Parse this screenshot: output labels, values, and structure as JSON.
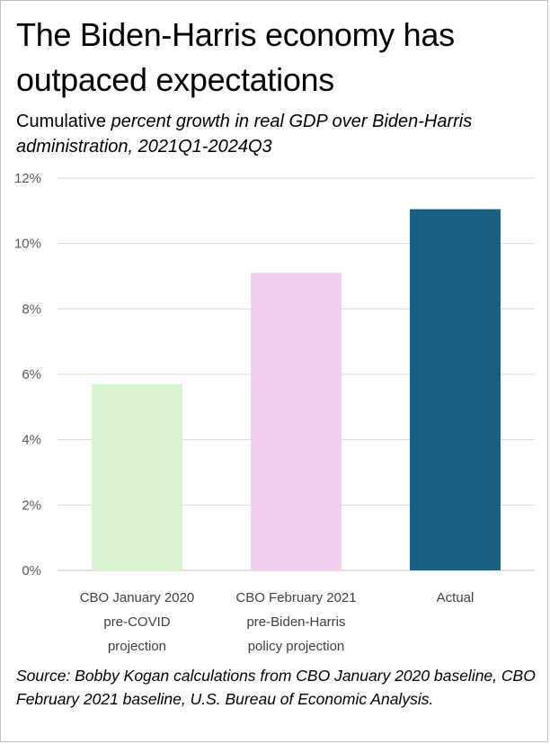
{
  "title": "The Biden-Harris economy has outpaced expectations",
  "subtitle": {
    "part1": "Cumulative ",
    "part2": "percent growth in real GDP over Biden-Harris administration, 2021Q1-2024Q3"
  },
  "source": "Source: Bobby Kogan calculations from CBO January 2020 baseline, CBO February 2021 baseline, U.S. Bureau of Economic Analysis.",
  "chart_data": {
    "type": "bar",
    "title": "The Biden-Harris economy has outpaced expectations",
    "xlabel": "",
    "ylabel": "",
    "ylim": [
      0,
      12
    ],
    "yticks": [
      0,
      2,
      4,
      6,
      8,
      10,
      12
    ],
    "ytick_labels": [
      "0%",
      "2%",
      "4%",
      "6%",
      "8%",
      "10%",
      "12%"
    ],
    "grid": true,
    "legend": "none",
    "categories": [
      [
        "CBO January 2020",
        "pre-COVID",
        "projection"
      ],
      [
        "CBO February 2021",
        "pre-Biden-Harris",
        "policy projection"
      ],
      [
        "Actual"
      ]
    ],
    "values": [
      5.7,
      9.1,
      11.05
    ],
    "colors": [
      "#d9f2d0",
      "#f2cfee",
      "#1a5f80"
    ]
  }
}
